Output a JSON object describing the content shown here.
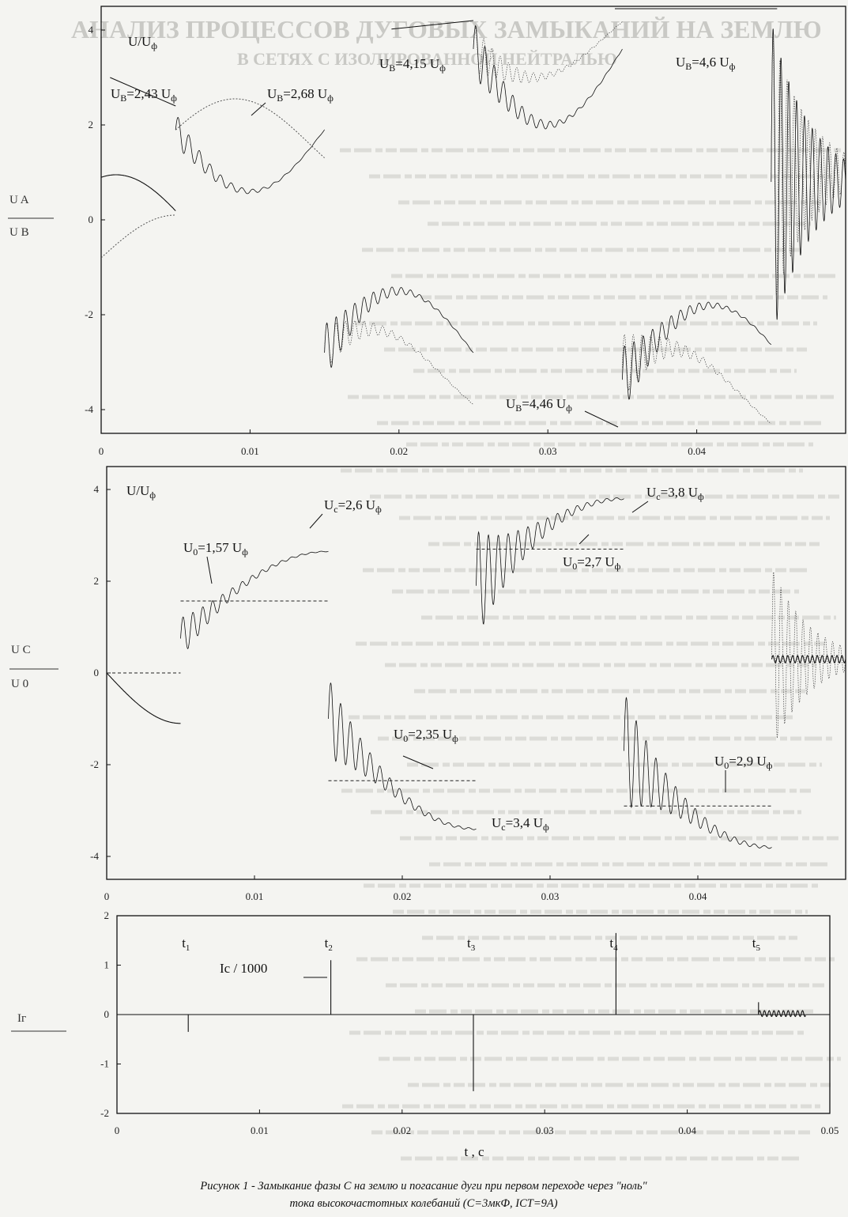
{
  "chart_data": [
    {
      "type": "line",
      "panel": "top",
      "ylabel_parts": [
        "U/U",
        "ф"
      ],
      "side_label": {
        "num": "U A",
        "den": "U B"
      },
      "xlim": [
        0,
        0.05
      ],
      "ylim": [
        -4.5,
        4.5
      ],
      "x_ticks": [
        "0",
        "0.01",
        "0.02",
        "0.03",
        "0.04"
      ],
      "y_ticks": [
        "4",
        "2",
        "0",
        "-2",
        "-4"
      ],
      "annotations": [
        "UB=2,43 Uф",
        "UB=4,15 Uф",
        "UB=4,6 Uф",
        "UB=4,46 Uф",
        "UB=2,68 Uф"
      ]
    },
    {
      "type": "line",
      "panel": "middle",
      "ylabel_parts": [
        "U/U",
        "ф"
      ],
      "side_label": {
        "num": "U C",
        "den": "U 0"
      },
      "xlim": [
        0,
        0.05
      ],
      "ylim": [
        -4.5,
        4.5
      ],
      "x_ticks": [
        "0",
        "0.01",
        "0.02",
        "0.03",
        "0.04"
      ],
      "y_ticks": [
        "4",
        "2",
        "0",
        "-2",
        "-4"
      ],
      "annotations": [
        "Uc=2,6 Uф",
        "U0=1,57 Uф",
        "Uc=3,8 Uф",
        "U0=2,7 Uф",
        "U0=2,35 Uф",
        "Uc=3,4 Uф",
        "U0=2,9 Uф"
      ]
    },
    {
      "type": "line",
      "panel": "bottom",
      "series_label": "Ic / 1000",
      "side_label": "Iг",
      "xlabel": "t , c",
      "xlim": [
        0,
        0.05
      ],
      "ylim": [
        -2,
        2
      ],
      "x_ticks": [
        "0",
        "0.01",
        "0.02",
        "0.03",
        "0.04",
        "0.05"
      ],
      "y_ticks": [
        "2",
        "1",
        "0",
        "-1",
        "-2"
      ],
      "event_labels": [
        "t1",
        "t2",
        "t3",
        "t4",
        "t5"
      ],
      "events_x": [
        0.005,
        0.015,
        0.025,
        0.035,
        0.045
      ],
      "spikes": [
        -0.35,
        1.1,
        -1.55,
        1.65,
        0.25
      ]
    }
  ],
  "caption": {
    "line1": "Рисунок 1 - Замыкание фазы С на землю и погасание дуги при первом переходе через \"ноль\"",
    "line2": "тока высокочастотных колебаний (С=3мкФ, IСТ=9А)"
  },
  "bleed_text": {
    "header": "АНАЛИЗ ПРОЦЕССОВ ДУГОВЫХ ЗАМЫКАНИЙ НА ЗЕМЛЮ",
    "sub": "В СЕТЯХ С ИЗОЛИРОВАННОЙ НЕЙТРАЛЬЮ"
  }
}
